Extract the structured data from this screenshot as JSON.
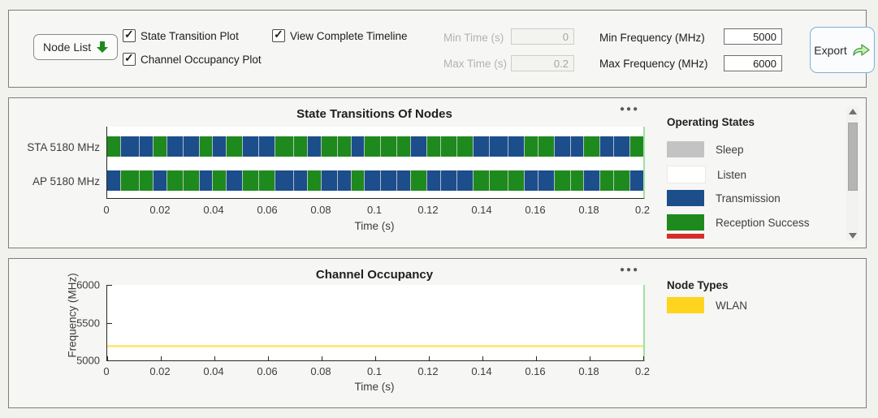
{
  "colors": {
    "sleep": "#c3c3c3",
    "listen": "#ffffff",
    "transmission": "#1d4e8c",
    "reception_success": "#1e8a1e",
    "reception_failure": "#d92b2b",
    "wlan": "#ffd41f",
    "accent_border_green": "#9fe2a0",
    "export_border_blue": "#7db2d6"
  },
  "toolbar": {
    "node_list_label": "Node List",
    "state_transition_plot_label": "State Transition Plot",
    "state_transition_plot_checked": true,
    "channel_occupancy_plot_label": "Channel Occupancy Plot",
    "channel_occupancy_plot_checked": true,
    "view_complete_timeline_label": "View Complete Timeline",
    "view_complete_timeline_checked": true,
    "min_time_label": "Min Time (s)",
    "min_time_value": "0",
    "max_time_label": "Max Time (s)",
    "max_time_value": "0.2",
    "min_freq_label": "Min Frequency (MHz)",
    "min_freq_value": "5000",
    "max_freq_label": "Max Frequency (MHz)",
    "max_freq_value": "6000",
    "export_label": "Export"
  },
  "chart_data": [
    {
      "type": "timeline",
      "title": "State Transitions Of Nodes",
      "xlabel": "Time (s)",
      "xlim": [
        0,
        0.2
      ],
      "x_ticks": [
        "0",
        "0.02",
        "0.04",
        "0.06",
        "0.08",
        "0.1",
        "0.12",
        "0.14",
        "0.16",
        "0.18",
        "0.2"
      ],
      "rows": [
        {
          "label": "STA 5180 MHz",
          "segments": [
            {
              "s": "R",
              "d": 5
            },
            {
              "s": "T",
              "d": 7
            },
            {
              "s": "T",
              "d": 5
            },
            {
              "s": "R",
              "d": 5
            },
            {
              "s": "T",
              "d": 6
            },
            {
              "s": "T",
              "d": 6
            },
            {
              "s": "R",
              "d": 5
            },
            {
              "s": "T",
              "d": 5
            },
            {
              "s": "R",
              "d": 6
            },
            {
              "s": "T",
              "d": 6
            },
            {
              "s": "T",
              "d": 6
            },
            {
              "s": "R",
              "d": 7
            },
            {
              "s": "R",
              "d": 5
            },
            {
              "s": "T",
              "d": 5
            },
            {
              "s": "R",
              "d": 6
            },
            {
              "s": "R",
              "d": 5
            },
            {
              "s": "T",
              "d": 5
            },
            {
              "s": "R",
              "d": 6
            },
            {
              "s": "R",
              "d": 6
            },
            {
              "s": "R",
              "d": 5
            },
            {
              "s": "T",
              "d": 6
            },
            {
              "s": "R",
              "d": 5
            },
            {
              "s": "R",
              "d": 6
            },
            {
              "s": "R",
              "d": 6
            },
            {
              "s": "T",
              "d": 6
            },
            {
              "s": "T",
              "d": 7
            },
            {
              "s": "T",
              "d": 6
            },
            {
              "s": "R",
              "d": 5
            },
            {
              "s": "R",
              "d": 6
            },
            {
              "s": "T",
              "d": 6
            },
            {
              "s": "T",
              "d": 5
            },
            {
              "s": "R",
              "d": 6
            },
            {
              "s": "T",
              "d": 5
            },
            {
              "s": "T",
              "d": 6
            },
            {
              "s": "R",
              "d": 5
            }
          ]
        },
        {
          "label": "AP 5180 MHz",
          "segments": [
            {
              "s": "T",
              "d": 5
            },
            {
              "s": "R",
              "d": 7
            },
            {
              "s": "R",
              "d": 5
            },
            {
              "s": "T",
              "d": 5
            },
            {
              "s": "R",
              "d": 6
            },
            {
              "s": "R",
              "d": 6
            },
            {
              "s": "T",
              "d": 5
            },
            {
              "s": "R",
              "d": 5
            },
            {
              "s": "T",
              "d": 6
            },
            {
              "s": "R",
              "d": 6
            },
            {
              "s": "R",
              "d": 6
            },
            {
              "s": "T",
              "d": 7
            },
            {
              "s": "T",
              "d": 5
            },
            {
              "s": "R",
              "d": 5
            },
            {
              "s": "T",
              "d": 6
            },
            {
              "s": "T",
              "d": 5
            },
            {
              "s": "R",
              "d": 5
            },
            {
              "s": "T",
              "d": 6
            },
            {
              "s": "T",
              "d": 6
            },
            {
              "s": "T",
              "d": 5
            },
            {
              "s": "R",
              "d": 6
            },
            {
              "s": "T",
              "d": 5
            },
            {
              "s": "T",
              "d": 6
            },
            {
              "s": "T",
              "d": 6
            },
            {
              "s": "R",
              "d": 6
            },
            {
              "s": "R",
              "d": 7
            },
            {
              "s": "R",
              "d": 6
            },
            {
              "s": "T",
              "d": 5
            },
            {
              "s": "T",
              "d": 6
            },
            {
              "s": "R",
              "d": 6
            },
            {
              "s": "R",
              "d": 5
            },
            {
              "s": "T",
              "d": 6
            },
            {
              "s": "R",
              "d": 5
            },
            {
              "s": "R",
              "d": 6
            },
            {
              "s": "T",
              "d": 5
            }
          ]
        }
      ],
      "legend": {
        "title": "Operating States",
        "items": [
          {
            "label": "Sleep",
            "color": "#c3c3c3"
          },
          {
            "label": "Listen",
            "color": "#ffffff"
          },
          {
            "label": "Transmission",
            "color": "#1d4e8c"
          },
          {
            "label": "Reception Success",
            "color": "#1e8a1e"
          }
        ],
        "partial_item_color": "#d92b2b"
      }
    },
    {
      "type": "line",
      "title": "Channel Occupancy",
      "xlabel": "Time (s)",
      "ylabel": "Frequency (MHz)",
      "xlim": [
        0,
        0.2
      ],
      "ylim": [
        5000,
        6000
      ],
      "x_ticks": [
        "0",
        "0.02",
        "0.04",
        "0.06",
        "0.08",
        "0.1",
        "0.12",
        "0.14",
        "0.16",
        "0.18",
        "0.2"
      ],
      "y_ticks": [
        "6000",
        "5500",
        "5000"
      ],
      "series": [
        {
          "name": "WLAN",
          "color": "#ffd41f",
          "y_value": 5180,
          "x_range": [
            0,
            0.2
          ]
        }
      ],
      "legend": {
        "title": "Node Types",
        "items": [
          {
            "label": "WLAN",
            "color": "#ffd41f"
          }
        ]
      }
    }
  ]
}
